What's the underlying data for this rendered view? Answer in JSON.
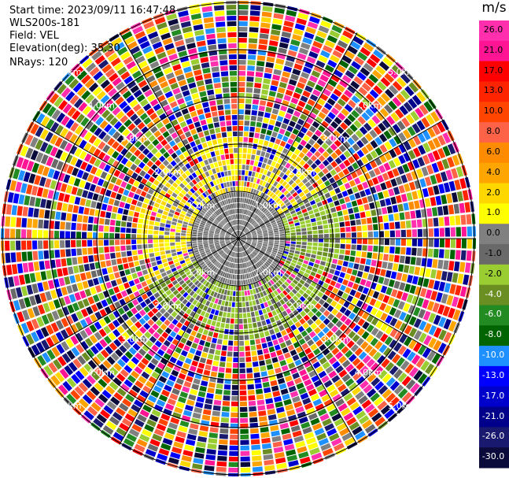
{
  "header": {
    "start_time": "Start time: 2023/09/11 16:47:48",
    "instrument": "WLS200s-181",
    "field": "Field: VEL",
    "elevation": "Elevation(deg): 35.30",
    "nrays": "NRays: 120"
  },
  "colorbar": {
    "unit": "m/s",
    "ticks": [
      "26.0",
      "21.0",
      "17.0",
      "13.0",
      "10.0",
      "8.0",
      "6.0",
      "4.0",
      "2.0",
      "1.0",
      "0.0",
      "-1.0",
      "-2.0",
      "-4.0",
      "-6.0",
      "-8.0",
      "-10.0",
      "-13.0",
      "-17.0",
      "-21.0",
      "-26.0",
      "-30.0"
    ],
    "colors": [
      "#ff2fae",
      "#ff1493",
      "#ff0000",
      "#ff2400",
      "#ff4500",
      "#ff6347",
      "#ff8c00",
      "#ffa500",
      "#ffd700",
      "#ffff00",
      "#808080",
      "#696969",
      "#9acd32",
      "#6b8e23",
      "#228b22",
      "#006400",
      "#1e90ff",
      "#0000ff",
      "#0000cd",
      "#00008b",
      "#191970",
      "#0b0b3b"
    ]
  },
  "rings": [
    "1.0km",
    "2.0km",
    "3.0km",
    "4.0km",
    "5.0km"
  ],
  "rays": 120
}
